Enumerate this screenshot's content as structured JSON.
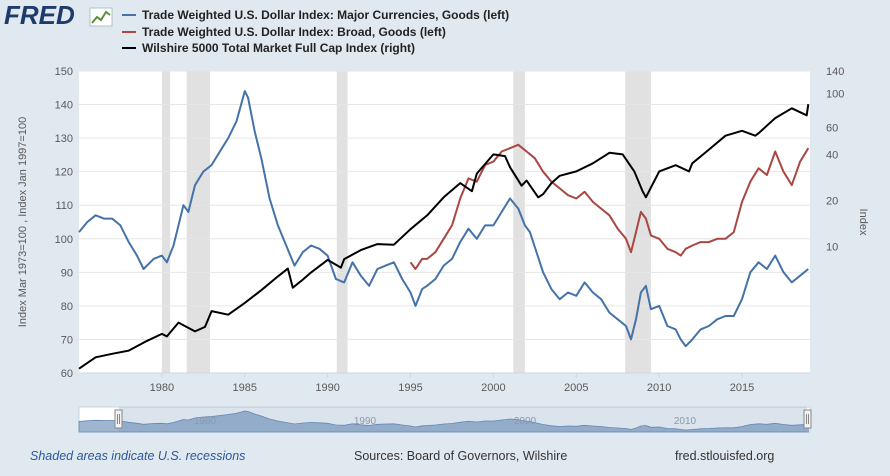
{
  "header": {
    "logo_text": "FRED",
    "legend": [
      {
        "label": "Trade Weighted U.S. Dollar Index: Major Currencies, Goods (left)",
        "color": "#4572a7"
      },
      {
        "label": "Trade Weighted U.S. Dollar Index: Broad, Goods (left)",
        "color": "#aa4643"
      },
      {
        "label": "Wilshire 5000 Total Market Full Cap Index (right)",
        "color": "#000000"
      }
    ]
  },
  "chart_data": {
    "type": "line",
    "title": "",
    "xlabel": "",
    "ylabel_left": "Index Mar 1973=100 , Index Jan 1997=100",
    "ylabel_right": "Index",
    "x_range": [
      1975.0,
      2019.1
    ],
    "x_ticks": [
      1980,
      1985,
      1990,
      1995,
      2000,
      2005,
      2010,
      2015
    ],
    "y_left_range": [
      60,
      150
    ],
    "y_left_ticks": [
      60,
      70,
      80,
      90,
      100,
      110,
      120,
      130,
      140,
      150
    ],
    "y_right_scale": "log",
    "y_right_range": [
      1.5,
      140
    ],
    "y_right_ticks": [
      10,
      20,
      40,
      60,
      100,
      140
    ],
    "recessions": [
      [
        1980.0,
        1980.5
      ],
      [
        1981.5,
        1982.9
      ],
      [
        1990.55,
        1991.2
      ],
      [
        2001.2,
        2001.9
      ],
      [
        2007.95,
        2009.5
      ]
    ],
    "series": [
      {
        "name": "Trade Weighted U.S. Dollar Index: Major Currencies, Goods (left)",
        "axis": "left",
        "color": "#4572a7",
        "x": [
          1975.0,
          1975.5,
          1976.0,
          1976.5,
          1977.0,
          1977.5,
          1978.0,
          1978.5,
          1978.9,
          1979.5,
          1980.0,
          1980.3,
          1980.7,
          1981.0,
          1981.3,
          1981.6,
          1982.0,
          1982.5,
          1983.0,
          1983.5,
          1984.0,
          1984.5,
          1985.0,
          1985.2,
          1985.6,
          1986.0,
          1986.5,
          1987.0,
          1987.5,
          1988.0,
          1988.5,
          1989.0,
          1989.5,
          1990.0,
          1990.5,
          1991.0,
          1991.5,
          1992.0,
          1992.5,
          1993.0,
          1993.5,
          1994.0,
          1994.5,
          1995.0,
          1995.3,
          1995.7,
          1996.0,
          1996.5,
          1997.0,
          1997.5,
          1998.0,
          1998.5,
          1999.0,
          1999.5,
          2000.0,
          2000.5,
          2001.0,
          2001.5,
          2001.9,
          2002.2,
          2002.6,
          2003.0,
          2003.5,
          2004.0,
          2004.5,
          2005.0,
          2005.5,
          2006.0,
          2006.5,
          2007.0,
          2007.5,
          2008.0,
          2008.3,
          2008.6,
          2008.9,
          2009.2,
          2009.5,
          2010.0,
          2010.5,
          2011.0,
          2011.3,
          2011.6,
          2012.0,
          2012.5,
          2013.0,
          2013.5,
          2014.0,
          2014.5,
          2015.0,
          2015.5,
          2016.0,
          2016.5,
          2017.0,
          2017.5,
          2018.0,
          2018.5,
          2019.0
        ],
        "values": [
          102,
          105,
          107,
          106,
          106,
          104,
          99,
          95,
          91,
          94,
          95,
          93,
          98,
          104,
          110,
          108,
          116,
          120,
          122,
          126,
          130,
          135,
          144,
          142,
          132,
          124,
          112,
          104,
          98,
          92,
          96,
          98,
          97,
          95,
          88,
          87,
          93,
          89,
          86,
          91,
          92,
          93,
          88,
          84,
          80,
          85,
          86,
          88,
          92,
          94,
          99,
          103,
          100,
          104,
          104,
          108,
          112,
          109,
          104,
          102,
          96,
          90,
          85,
          82,
          84,
          83,
          87,
          84,
          82,
          78,
          76,
          74,
          70,
          76,
          84,
          86,
          79,
          80,
          74,
          73,
          70,
          68,
          70,
          73,
          74,
          76,
          77,
          77,
          82,
          90,
          93,
          91,
          95,
          90,
          87,
          89,
          91
        ]
      },
      {
        "name": "Trade Weighted U.S. Dollar Index: Broad, Goods (left)",
        "axis": "left",
        "color": "#aa4643",
        "x": [
          1995.0,
          1995.3,
          1995.7,
          1996.0,
          1996.5,
          1997.0,
          1997.5,
          1998.0,
          1998.5,
          1999.0,
          1999.5,
          2000.0,
          2000.5,
          2001.0,
          2001.5,
          2002.0,
          2002.5,
          2003.0,
          2003.5,
          2004.0,
          2004.5,
          2005.0,
          2005.5,
          2006.0,
          2006.5,
          2007.0,
          2007.5,
          2008.0,
          2008.3,
          2008.6,
          2008.9,
          2009.2,
          2009.5,
          2010.0,
          2010.5,
          2011.0,
          2011.3,
          2011.6,
          2012.0,
          2012.5,
          2013.0,
          2013.5,
          2014.0,
          2014.5,
          2015.0,
          2015.5,
          2016.0,
          2016.5,
          2017.0,
          2017.5,
          2018.0,
          2018.5,
          2019.0
        ],
        "values": [
          93,
          91,
          94,
          94,
          96,
          100,
          104,
          112,
          118,
          117,
          122,
          123,
          126,
          127,
          128,
          126,
          124,
          120,
          117,
          115,
          113,
          112,
          114,
          111,
          109,
          107,
          103,
          100,
          96,
          102,
          108,
          106,
          101,
          100,
          97,
          96,
          95,
          97,
          98,
          99,
          99,
          100,
          100,
          102,
          111,
          117,
          121,
          119,
          126,
          120,
          116,
          123,
          127
        ]
      },
      {
        "name": "Wilshire 5000 Total Market Full Cap Index (right)",
        "axis": "right",
        "color": "#000000",
        "x": [
          1975.0,
          1976.0,
          1977.0,
          1978.0,
          1979.0,
          1980.0,
          1980.3,
          1981.0,
          1982.0,
          1982.6,
          1983.0,
          1984.0,
          1985.0,
          1986.0,
          1987.0,
          1987.6,
          1987.9,
          1988.5,
          1989.0,
          1990.0,
          1990.8,
          1991.0,
          1992.0,
          1993.0,
          1994.0,
          1995.0,
          1996.0,
          1997.0,
          1998.0,
          1998.7,
          1999.0,
          2000.0,
          2000.7,
          2001.0,
          2001.7,
          2002.0,
          2002.7,
          2003.0,
          2003.5,
          2004.0,
          2005.0,
          2006.0,
          2007.0,
          2007.8,
          2008.5,
          2009.0,
          2009.2,
          2010.0,
          2011.0,
          2011.8,
          2012.0,
          2013.0,
          2014.0,
          2015.0,
          2015.8,
          2016.0,
          2017.0,
          2018.0,
          2018.9,
          2019.0
        ],
        "values": [
          1.6,
          1.9,
          2.0,
          2.1,
          2.4,
          2.7,
          2.6,
          3.2,
          2.8,
          3.0,
          3.8,
          3.6,
          4.3,
          5.2,
          6.4,
          7.2,
          5.4,
          6.1,
          6.8,
          8.2,
          7.3,
          8.3,
          9.5,
          10.4,
          10.3,
          13.0,
          16.0,
          21.0,
          26.0,
          23.0,
          30.0,
          40.0,
          39.0,
          33.0,
          25.0,
          27.0,
          21.0,
          22.0,
          26.0,
          29.0,
          31.0,
          35.0,
          41.0,
          40.0,
          31.0,
          23.0,
          21.0,
          31.0,
          34.0,
          31.0,
          35.0,
          43.0,
          53.0,
          57.0,
          53.0,
          55.0,
          69.0,
          80.0,
          72.0,
          85.0
        ]
      }
    ],
    "annotations": [
      {
        "text": "Shaded areas indicate U.S. recessions"
      },
      {
        "text": "Sources: Board of Governors, Wilshire"
      },
      {
        "text": "fred.stlouisfed.org"
      }
    ]
  },
  "navigator": {
    "labels": [
      "1980",
      "1990",
      "2000",
      "2010"
    ]
  },
  "footer": {
    "recessions_note": "Shaded areas indicate U.S. recessions",
    "sources": "Sources: Board of Governors, Wilshire",
    "site": "fred.stlouisfed.org"
  }
}
